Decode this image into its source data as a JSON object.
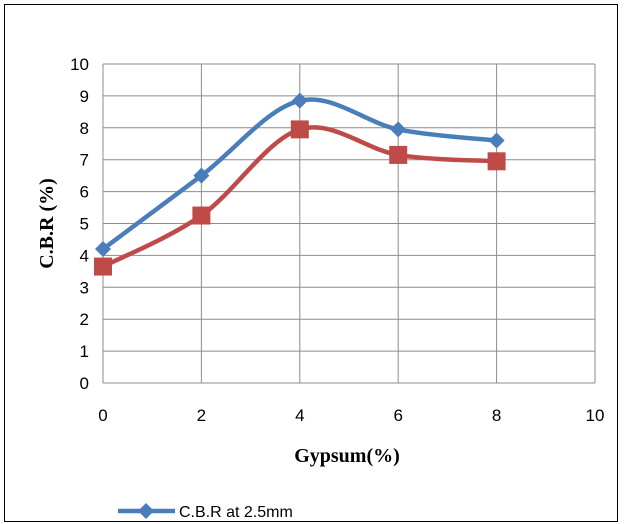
{
  "chart_data": {
    "type": "line",
    "title": "",
    "xlabel": "Gypsum(%)",
    "ylabel": "C.B.R (%)",
    "xlim": [
      0,
      10
    ],
    "ylim": [
      0,
      10
    ],
    "x_ticks": [
      "0",
      "2",
      "4",
      "6",
      "8",
      "10"
    ],
    "y_ticks": [
      "0",
      "1",
      "2",
      "3",
      "4",
      "5",
      "6",
      "7",
      "8",
      "9",
      "10"
    ],
    "grid": true,
    "legend_position": "bottom",
    "series": [
      {
        "name": "C.B.R at 2.5mm",
        "marker": "diamond",
        "color": "#4a7ebb",
        "x": [
          0,
          2,
          4,
          6,
          8
        ],
        "y": [
          4.2,
          6.5,
          8.85,
          7.95,
          7.6
        ]
      },
      {
        "marker": "square",
        "color": "#be4b48",
        "x": [
          0,
          2,
          4,
          6,
          8
        ],
        "y": [
          3.65,
          5.25,
          7.95,
          7.15,
          6.95
        ]
      }
    ]
  }
}
